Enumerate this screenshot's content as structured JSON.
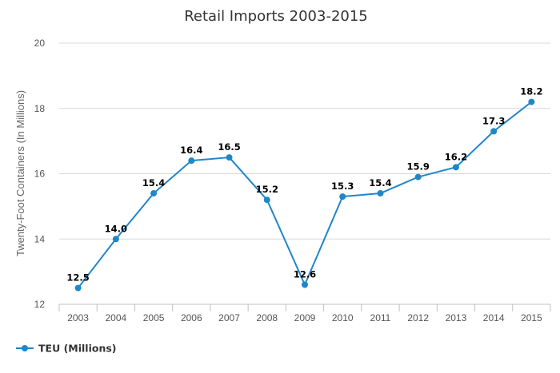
{
  "chart_data": {
    "type": "line",
    "title": "Retail Imports 2003-2015",
    "xlabel": "",
    "ylabel": "Twenty-Foot Containers (In Millions)",
    "categories": [
      "2003",
      "2004",
      "2005",
      "2006",
      "2007",
      "2008",
      "2009",
      "2010",
      "2011",
      "2012",
      "2013",
      "2014",
      "2015"
    ],
    "series": [
      {
        "name": "TEU (Millions)",
        "color": "#1f86c8",
        "values": [
          12.5,
          14.0,
          15.4,
          16.4,
          16.5,
          15.2,
          12.6,
          15.3,
          15.4,
          15.9,
          16.2,
          17.3,
          18.2
        ],
        "data_labels": [
          "12.5",
          "14.0",
          "15.4",
          "16.4",
          "16.5",
          "15.2",
          "12.6",
          "15.3",
          "15.4",
          "15.9",
          "16.2",
          "17.3",
          "18.2"
        ]
      }
    ],
    "ylim": [
      12,
      20
    ],
    "yticks": [
      "12",
      "14",
      "16",
      "18",
      "20"
    ],
    "grid": true,
    "legend_position": "bottom-left"
  }
}
